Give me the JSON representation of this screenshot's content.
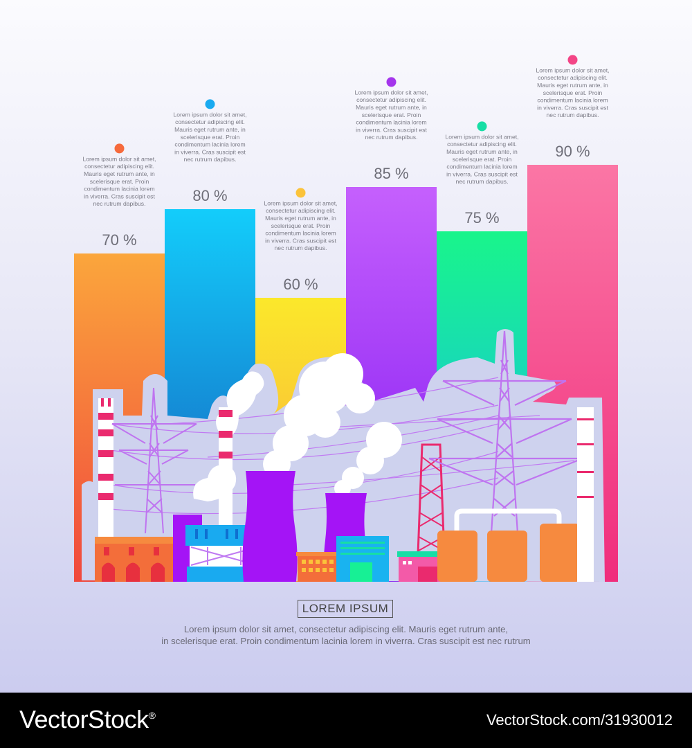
{
  "chart_data": {
    "type": "bar",
    "categories": [
      "70 %",
      "80 %",
      "60 %",
      "85 %",
      "75 %",
      "90 %"
    ],
    "values": [
      70,
      80,
      60,
      85,
      75,
      90
    ],
    "value_labels": [
      "70 %",
      "80 %",
      "60 %",
      "85 %",
      "75 %",
      "90 %"
    ],
    "descriptions": [
      [
        "Lorem ipsum dolor sit amet,",
        "consectetur adipiscing elit.",
        "Mauris eget rutrum ante, in",
        "scelerisque erat. Proin",
        "condimentum lacinia lorem",
        "in viverra. Cras suscipit est",
        "nec rutrum dapibus."
      ],
      [
        "Lorem ipsum dolor sit amet,",
        "consectetur adipiscing elit.",
        "Mauris eget rutrum ante, in",
        "scelerisque erat. Proin",
        "condimentum lacinia lorem",
        "in viverra. Cras suscipit est",
        "nec rutrum dapibus."
      ],
      [
        "Lorem ipsum dolor sit amet,",
        "consectetur adipiscing elit.",
        "Mauris eget rutrum ante, in",
        "scelerisque erat. Proin",
        "condimentum lacinia lorem",
        "in viverra. Cras suscipit est",
        "nec rutrum dapibus."
      ],
      [
        "Lorem ipsum dolor sit amet,",
        "consectetur adipiscing elit.",
        "Mauris eget rutrum ante, in",
        "scelerisque erat. Proin",
        "condimentum lacinia lorem",
        "in viverra. Cras suscipit est",
        "nec rutrum dapibus."
      ],
      [
        "Lorem ipsum dolor sit amet,",
        "consectetur adipiscing elit.",
        "Mauris eget rutrum ante, in",
        "scelerisque erat. Proin",
        "condimentum lacinia lorem",
        "in viverra. Cras suscipit est",
        "nec rutrum dapibus."
      ],
      [
        "Lorem ipsum dolor sit amet,",
        "consectetur adipiscing elit.",
        "Mauris eget rutrum ante, in",
        "scelerisque erat. Proin",
        "condimentum lacinia lorem",
        "in viverra. Cras suscipit est",
        "nec rutrum dapibus."
      ]
    ],
    "bar_gradients": [
      [
        "#fba63c",
        "#f0483d"
      ],
      [
        "#13cdfb",
        "#1656b8"
      ],
      [
        "#fbe82b",
        "#f9a43e"
      ],
      [
        "#c560fd",
        "#7f16f1"
      ],
      [
        "#19f58b",
        "#15b2f5"
      ],
      [
        "#fb76a5",
        "#f02d7c"
      ]
    ],
    "dot_colors": [
      "#f66a3c",
      "#19aaf0",
      "#fbc33a",
      "#a435ec",
      "#17dea5",
      "#f34586"
    ],
    "grid": false,
    "legend": "none"
  },
  "footer": {
    "title": "LOREM IPSUM",
    "lines": [
      "Lorem ipsum dolor sit amet, consectetur adipiscing elit. Mauris eget rutrum ante,",
      "in scelerisque erat. Proin condimentum lacinia lorem in viverra. Cras suscipit est nec rutrum"
    ]
  },
  "watermark": {
    "brand": "VectorStock",
    "registered": "®",
    "url": "VectorStock.com/31930012"
  },
  "colors": {
    "pylon": "#bf74f0",
    "stripe": "#ea2a6e",
    "cooling_tower": "#a414f6",
    "tank": "#f68a3f",
    "outline": "#ccd0ec"
  }
}
